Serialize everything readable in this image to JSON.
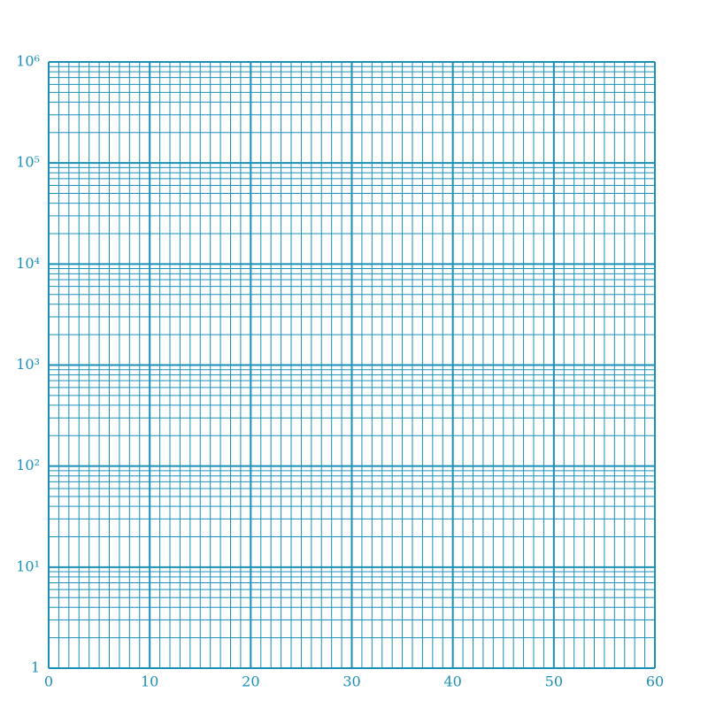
{
  "chart_data": {
    "type": "grid",
    "color": "#1a8fb8",
    "xlim": [
      0,
      60
    ],
    "xticks": [
      0,
      10,
      20,
      30,
      40,
      50,
      60
    ],
    "yscale": "log",
    "ylim": [
      1,
      1000000
    ],
    "yticks": [
      1,
      {
        "value": 10,
        "label": "10¹"
      },
      {
        "value": 100,
        "label": "10²"
      },
      {
        "value": 1000,
        "label": "10³"
      },
      {
        "value": 10000,
        "label": "10⁴"
      },
      {
        "value": 100000,
        "label": "10⁵"
      },
      {
        "value": 1000000,
        "label": "10⁶"
      }
    ],
    "grid": true,
    "minor_grid": true
  }
}
